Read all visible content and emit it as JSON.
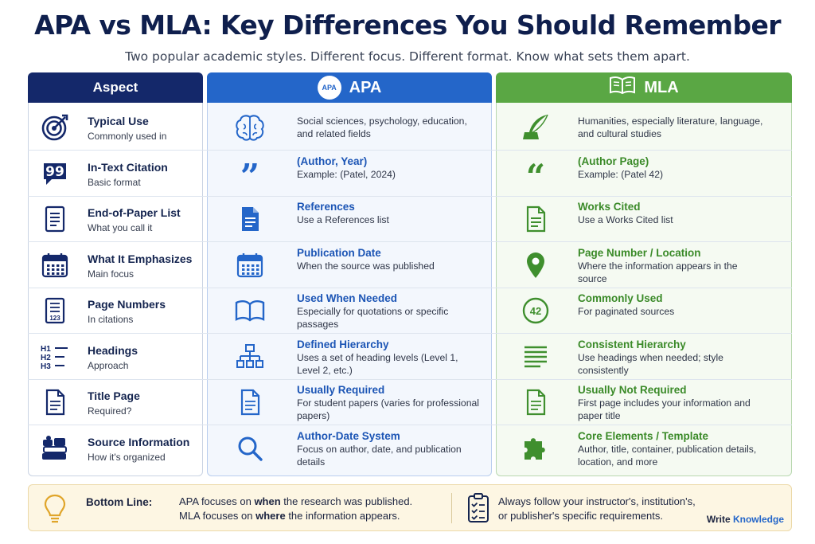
{
  "title": "APA vs MLA: Key Differences You Should Remember",
  "subtitle": "Two popular academic styles. Different focus. Different format. Know what sets them apart.",
  "headers": {
    "aspect": "Aspect",
    "apa": "APA",
    "apa_badge": "APA",
    "mla": "MLA"
  },
  "colors": {
    "navy": "#14286a",
    "apa_blue": "#2466c9",
    "mla_green": "#5aa744"
  },
  "rows": [
    {
      "aspect": "Typical Use",
      "aspect_sub": "Commonly used in",
      "aspect_icon": "target-icon",
      "apa_title": "",
      "apa_text": "Social sciences, psychology, education, and related fields",
      "apa_icon": "brain-icon",
      "mla_title": "",
      "mla_text": "Humanities, especially literature, language, and cultural studies",
      "mla_icon": "quill-icon"
    },
    {
      "aspect": "In-Text Citation",
      "aspect_sub": "Basic format",
      "aspect_icon": "quote-bubble-icon",
      "apa_title": "(Author, Year)",
      "apa_text": "Example: (Patel, 2024)",
      "apa_icon": "closing-quote-icon",
      "mla_title": "(Author Page)",
      "mla_text": "Example: (Patel 42)",
      "mla_icon": "opening-quote-icon"
    },
    {
      "aspect": "End-of-Paper List",
      "aspect_sub": "What you call it",
      "aspect_icon": "list-document-icon",
      "apa_title": "References",
      "apa_text": "Use a References list",
      "apa_icon": "document-icon",
      "mla_title": "Works Cited",
      "mla_text": "Use a Works Cited list",
      "mla_icon": "document-outline-icon"
    },
    {
      "aspect": "What It Emphasizes",
      "aspect_sub": "Main focus",
      "aspect_icon": "calendar-icon",
      "apa_title": "Publication Date",
      "apa_text": "When the source was published",
      "apa_icon": "calendar-icon",
      "mla_title": "Page Number / Location",
      "mla_text": "Where the information appears in the source",
      "mla_icon": "location-pin-icon"
    },
    {
      "aspect": "Page Numbers",
      "aspect_sub": "In citations",
      "aspect_icon": "numbered-page-icon",
      "aspect_icon_text": "123",
      "apa_title": "Used When Needed",
      "apa_text": "Especially for quotations or specific passages",
      "apa_icon": "open-book-icon",
      "mla_title": "Commonly Used",
      "mla_text": "For paginated sources",
      "mla_icon": "page-number-badge-icon",
      "mla_icon_text": "42"
    },
    {
      "aspect": "Headings",
      "aspect_sub": "Approach",
      "aspect_icon": "heading-levels-icon",
      "heading_marks": [
        "H1",
        "H2",
        "H3"
      ],
      "apa_title": "Defined Hierarchy",
      "apa_text": "Uses a set of heading levels (Level 1, Level 2, etc.)",
      "apa_icon": "hierarchy-icon",
      "mla_title": "Consistent Hierarchy",
      "mla_text": "Use headings when needed; style consistently",
      "mla_icon": "text-lines-icon"
    },
    {
      "aspect": "Title Page",
      "aspect_sub": "Required?",
      "aspect_icon": "page-icon",
      "apa_title": "Usually Required",
      "apa_text": "For student papers (varies for professional papers)",
      "apa_icon": "page-icon",
      "mla_title": "Usually Not Required",
      "mla_text": "First page includes your information and paper title",
      "mla_icon": "page-icon"
    },
    {
      "aspect": "Source Information",
      "aspect_sub": "How it's organized",
      "aspect_icon": "books-icon",
      "apa_title": "Author-Date System",
      "apa_text": "Focus on author, date, and publication details",
      "apa_icon": "magnifier-icon",
      "mla_title": "Core Elements / Template",
      "mla_text": "Author, title, container, publication details, location, and more",
      "mla_icon": "puzzle-icon"
    }
  ],
  "bottom": {
    "label": "Bottom Line:",
    "line1_pre": "APA focuses on ",
    "line1_bold": "when",
    "line1_post": " the research was published.",
    "line2_pre": "MLA focuses on ",
    "line2_bold": "where",
    "line2_post": " the information appears.",
    "right1": "Always follow your instructor's, institution's,",
    "right2": "or publisher's specific requirements.",
    "brand_a": "Write",
    "brand_b": "Knowledge",
    "icons": [
      "lightbulb-icon",
      "checklist-icon"
    ]
  }
}
